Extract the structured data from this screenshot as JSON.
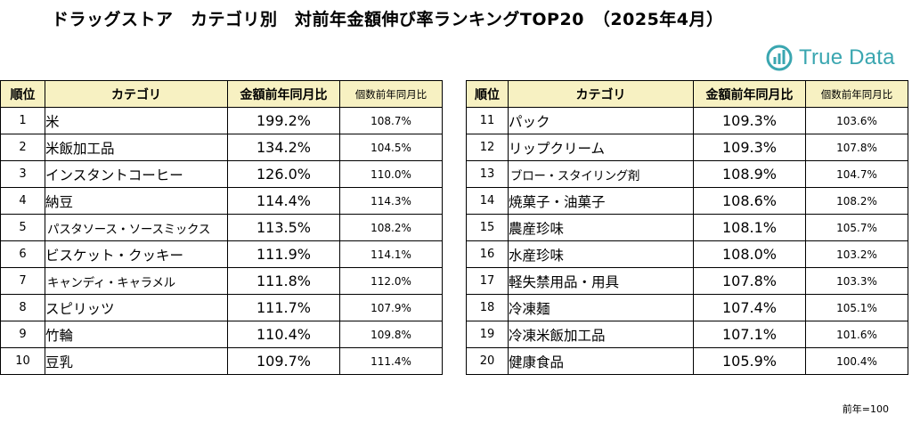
{
  "title": "ドラッグストア　カテゴリ別　対前年金額伸び率ランキングTOP20　（2025年4月）",
  "logo": {
    "text": "True Data",
    "icon": "bar-chart-circle-icon",
    "color": "#3aa6b0"
  },
  "footnote": "前年=100",
  "colors": {
    "header_bg": "#f7f1c2",
    "border": "#000000"
  },
  "chart_data": {
    "type": "table",
    "title": "ドラッグストア　カテゴリ別　対前年金額伸び率ランキングTOP20　（2025年4月）",
    "columns": [
      "順位",
      "カテゴリ",
      "金額前年同月比",
      "個数前年同月比"
    ],
    "rows": [
      {
        "rank": "1",
        "category": "米",
        "amount": "199.2%",
        "count": "108.7%"
      },
      {
        "rank": "2",
        "category": "米飯加工品",
        "amount": "134.2%",
        "count": "104.5%"
      },
      {
        "rank": "3",
        "category": "インスタントコーヒー",
        "amount": "126.0%",
        "count": "110.0%"
      },
      {
        "rank": "4",
        "category": "納豆",
        "amount": "114.4%",
        "count": "114.3%"
      },
      {
        "rank": "5",
        "category": "パスタソース・ソースミックス",
        "amount": "113.5%",
        "count": "108.2%"
      },
      {
        "rank": "6",
        "category": "ビスケット・クッキー",
        "amount": "111.9%",
        "count": "114.1%"
      },
      {
        "rank": "7",
        "category": "キャンディ・キャラメル",
        "amount": "111.8%",
        "count": "112.0%"
      },
      {
        "rank": "8",
        "category": "スピリッツ",
        "amount": "111.7%",
        "count": "107.9%"
      },
      {
        "rank": "9",
        "category": "竹輪",
        "amount": "110.4%",
        "count": "109.8%"
      },
      {
        "rank": "10",
        "category": "豆乳",
        "amount": "109.7%",
        "count": "111.4%"
      },
      {
        "rank": "11",
        "category": "パック",
        "amount": "109.3%",
        "count": "103.6%"
      },
      {
        "rank": "12",
        "category": "リップクリーム",
        "amount": "109.3%",
        "count": "107.8%"
      },
      {
        "rank": "13",
        "category": "ブロー・スタイリング剤",
        "amount": "108.9%",
        "count": "104.7%"
      },
      {
        "rank": "14",
        "category": "焼菓子・油菓子",
        "amount": "108.6%",
        "count": "108.2%"
      },
      {
        "rank": "15",
        "category": "農産珍味",
        "amount": "108.1%",
        "count": "105.7%"
      },
      {
        "rank": "16",
        "category": "水産珍味",
        "amount": "108.0%",
        "count": "103.2%"
      },
      {
        "rank": "17",
        "category": "軽失禁用品・用具",
        "amount": "107.8%",
        "count": "103.3%"
      },
      {
        "rank": "18",
        "category": "冷凍麺",
        "amount": "107.4%",
        "count": "105.1%"
      },
      {
        "rank": "19",
        "category": "冷凍米飯加工品",
        "amount": "107.1%",
        "count": "101.6%"
      },
      {
        "rank": "20",
        "category": "健康食品",
        "amount": "105.9%",
        "count": "100.4%"
      }
    ]
  }
}
